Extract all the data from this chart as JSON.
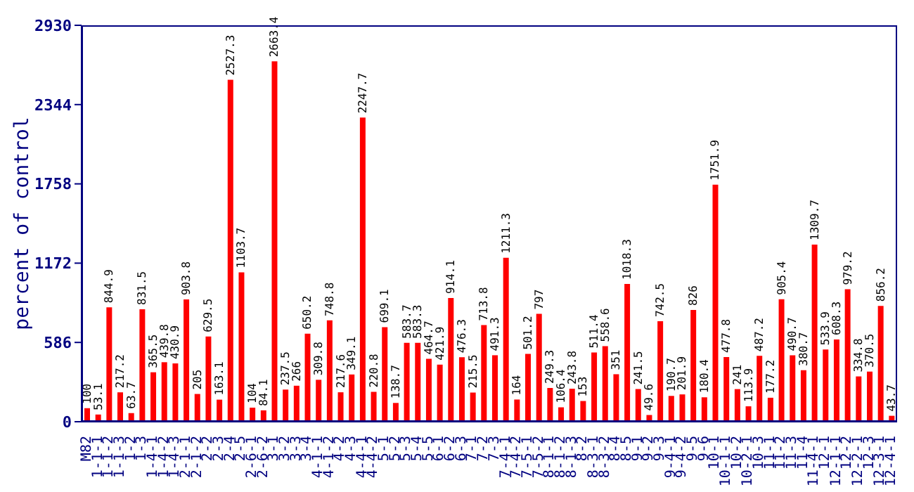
{
  "chart_data": {
    "type": "bar",
    "ylabel": "percent of control",
    "categories": [
      "M82",
      "1-1-1",
      "1-1-2",
      "1-1-3",
      "1-2",
      "1-3",
      "1-4-1",
      "1-4-2",
      "1-4-3",
      "2-1-1",
      "2-1-2",
      "2-2",
      "2-3",
      "2-4",
      "2-5",
      "2-6-1",
      "2-6-2",
      "3-1",
      "3-2",
      "3-3",
      "3-4",
      "4-1-1",
      "4-1-2",
      "4-2",
      "4-3",
      "4-4-1",
      "4-4-2",
      "5-1",
      "5-2",
      "5-3",
      "5-4",
      "5-5",
      "6-1",
      "6-2",
      "6-3",
      "7-1",
      "7-2",
      "7-3",
      "7-4-1",
      "7-4-2",
      "7-5-1",
      "7-5-2",
      "8-1-1",
      "8-1-2",
      "8-1-3",
      "8-2",
      "8-3-1",
      "8-3-2",
      "8-4",
      "8-5",
      "9-1",
      "9-2",
      "9-3",
      "9-4-1",
      "9-4-2",
      "9-5",
      "9-6",
      "10-1",
      "10-1-1",
      "10-2",
      "10-2-1",
      "10-3",
      "11-1",
      "11-2",
      "11-3",
      "11-4",
      "11-4-1",
      "12-1",
      "12-1-1",
      "12-2",
      "12-2-1",
      "12-3",
      "12-3-1",
      "12-4-1"
    ],
    "values": [
      100,
      53.1,
      844.9,
      217.2,
      63.7,
      831.5,
      365.5,
      439.8,
      430.9,
      903.8,
      205,
      629.5,
      163.1,
      2527.3,
      1103.7,
      104,
      84.1,
      2663.4,
      237.5,
      266,
      650.2,
      309.8,
      748.8,
      217.6,
      349.1,
      2247.7,
      220.8,
      699.1,
      138.7,
      583.7,
      583.3,
      464.7,
      421.9,
      914.1,
      476.3,
      215.5,
      713.8,
      491.3,
      1211.3,
      164,
      501.2,
      797,
      249.3,
      106.4,
      243.8,
      153,
      511.4,
      558.6,
      351,
      1018.3,
      241.5,
      49.6,
      742.5,
      190.7,
      201.9,
      826,
      180.4,
      1751.9,
      477.8,
      241,
      113.9,
      487.2,
      177.2,
      905.4,
      490.7,
      380.7,
      1309.7,
      533.9,
      608.3,
      979.2,
      334.8,
      370.5,
      856.2,
      43.7
    ],
    "color": "#ff0000",
    "ylim": [
      0,
      2930
    ],
    "yticks": [
      0,
      586,
      1172,
      1758,
      2344,
      2930
    ],
    "data_labels": true
  }
}
